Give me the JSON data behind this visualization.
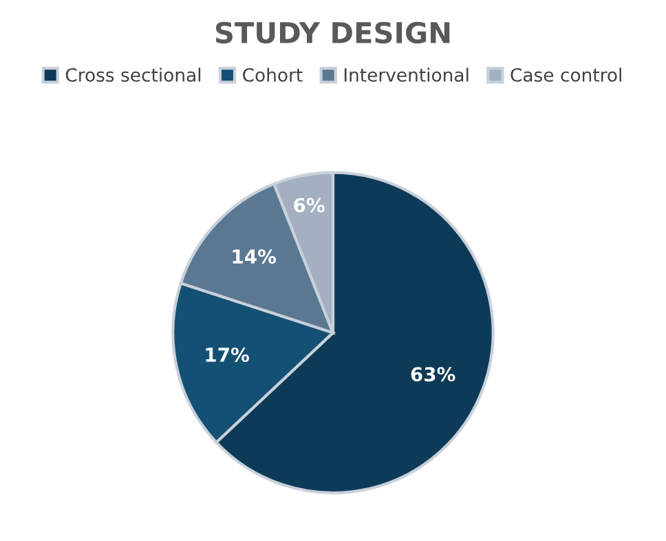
{
  "chart_data": {
    "type": "pie",
    "title": "STUDY DESIGN",
    "categories": [
      "Cross sectional",
      "Cohort",
      "Interventional",
      "Case control"
    ],
    "values": [
      63,
      17,
      14,
      6
    ],
    "colors": [
      "#0d3a57",
      "#145073",
      "#5a7892",
      "#a2b0c1"
    ],
    "value_labels": [
      "63%",
      "17%",
      "14%",
      "6%"
    ],
    "legend": "top"
  }
}
